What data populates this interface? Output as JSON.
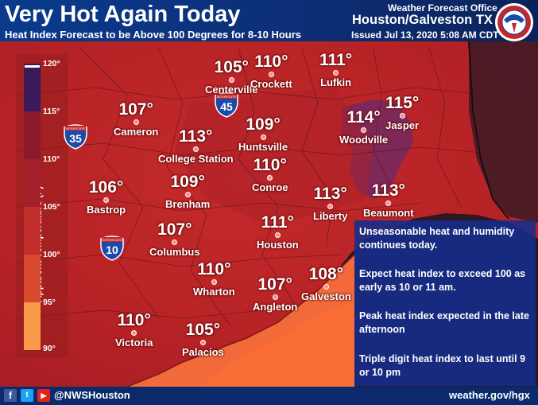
{
  "header": {
    "title": "Very Hot Again Today",
    "subtitle": "Heat Index Forecast to be Above 100 Degrees for 8-10 Hours",
    "office_label": "Weather Forecast Office",
    "office_name": "Houston/Galveston TX",
    "issued": "Issued Jul 13, 2020 5:08 AM CDT"
  },
  "legend": {
    "title": "Apparent Temperature (F)",
    "ticks": [
      "120°",
      "115°",
      "110°",
      "105°",
      "100°",
      "95°",
      "90°"
    ],
    "colors": [
      "#3a1a5a",
      "#8c1a2e",
      "#b4262a",
      "#d23a2c",
      "#f07a36",
      "#f9a650"
    ]
  },
  "highways": [
    {
      "label": "INTERSTATE",
      "number": "35"
    },
    {
      "label": "INTERSTATE",
      "number": "45"
    },
    {
      "label": "INTERSTATE",
      "number": "10"
    }
  ],
  "cities": [
    {
      "name": "Centerville",
      "value": "105°"
    },
    {
      "name": "Crockett",
      "value": "110°"
    },
    {
      "name": "Lufkin",
      "value": "111°"
    },
    {
      "name": "Cameron",
      "value": "107°"
    },
    {
      "name": "Jasper",
      "value": "115°"
    },
    {
      "name": "Woodville",
      "value": "114°"
    },
    {
      "name": "College Station",
      "value": "113°"
    },
    {
      "name": "Huntsville",
      "value": "109°"
    },
    {
      "name": "Bastrop",
      "value": "106°"
    },
    {
      "name": "Brenham",
      "value": "109°"
    },
    {
      "name": "Conroe",
      "value": "110°"
    },
    {
      "name": "Liberty",
      "value": "113°"
    },
    {
      "name": "Beaumont",
      "value": "113°"
    },
    {
      "name": "Columbus",
      "value": "107°"
    },
    {
      "name": "Houston",
      "value": "111°"
    },
    {
      "name": "Wharton",
      "value": "110°"
    },
    {
      "name": "Angleton",
      "value": "107°"
    },
    {
      "name": "Galveston",
      "value": "108°"
    },
    {
      "name": "Victoria",
      "value": "110°"
    },
    {
      "name": "Palacios",
      "value": "105°"
    }
  ],
  "info": {
    "p1": "Unseasonable heat and humidity continues today.",
    "p2": "Expect heat index to exceed 100 as early as 10 or 11 am.",
    "p3": "Peak heat index expected in the late afternoon",
    "p4": "Triple digit heat index to last until 9 or 10 pm"
  },
  "footer": {
    "facebook_icon": "f",
    "twitter_icon": "t",
    "youtube_icon": "▶",
    "handle": "@NWSHouston",
    "website": "weather.gov/hgx"
  },
  "logo": {
    "text": "NATIONAL WEATHER SERVICE"
  }
}
